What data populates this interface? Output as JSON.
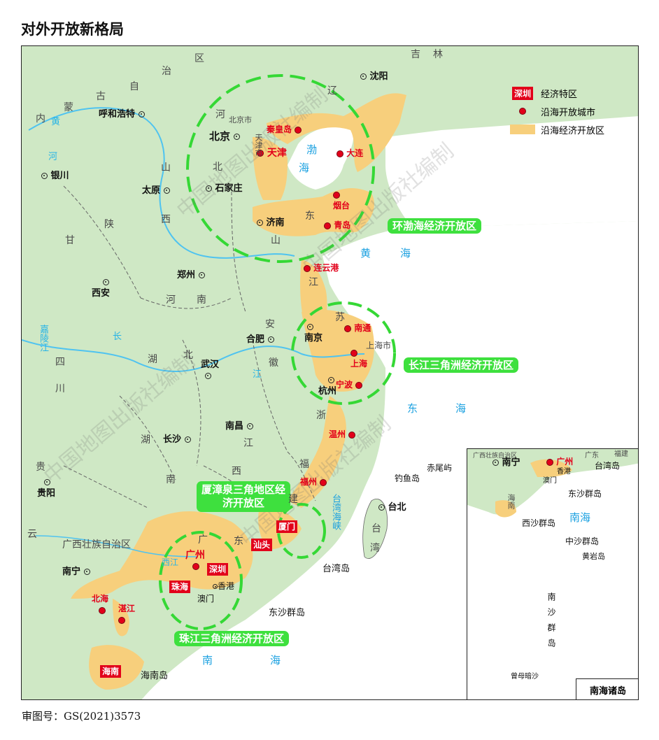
{
  "title": "对外开放新格局",
  "approval": "审图号：GS(2021)3573",
  "legend": {
    "sez_sample": "深圳",
    "sez_label": "经济特区",
    "open_city_label": "沿海开放城市",
    "zone_label": "沿海经济开放区"
  },
  "colors": {
    "land": "#cfe8c5",
    "zone_fill": "#f7cf7c",
    "sea": "#ffffff",
    "open_city": "#e2001a",
    "zone_circle": "#35d835",
    "river": "#4fc3f0"
  },
  "zones": {
    "bohai": "环渤海经济开放区",
    "yangtze": "长江三角洲经济开放区",
    "minnan": "厦漳泉三角地区经济开放区",
    "pearl": "珠江三角洲经济开放区"
  },
  "sez": [
    "深圳",
    "珠海",
    "汕头",
    "厦门",
    "海南"
  ],
  "open_cities": [
    "秦皇岛",
    "天津",
    "大连",
    "烟台",
    "青岛",
    "连云港",
    "南通",
    "上海",
    "宁波",
    "温州",
    "福州",
    "广州",
    "湛江",
    "北海"
  ],
  "cities": [
    "北京",
    "呼和浩特",
    "沈阳",
    "银川",
    "太原",
    "石家庄",
    "济南",
    "郑州",
    "西安",
    "合肥",
    "南京",
    "武汉",
    "杭州",
    "南昌",
    "长沙",
    "贵阳",
    "南宁",
    "台北",
    "香港",
    "澳门"
  ],
  "provinces": [
    "内",
    "蒙",
    "古",
    "自",
    "治",
    "区",
    "河",
    "北",
    "山",
    "西",
    "陕",
    "甘",
    "宁",
    "夏",
    "回",
    "族",
    "肃",
    "辽",
    "吉",
    "林",
    "江",
    "苏",
    "安",
    "徽",
    "浙",
    "福",
    "建",
    "湖",
    "南",
    "北",
    "四",
    "川",
    "贵",
    "州",
    "云",
    "广",
    "东",
    "广西壮族自治区",
    "台",
    "湾",
    "北京市",
    "天津市",
    "上海市"
  ],
  "seas": [
    "渤",
    "海",
    "黄",
    "海",
    "东",
    "海",
    "南",
    "海",
    "台湾海峡"
  ],
  "rivers": [
    "黄",
    "河",
    "长",
    "江",
    "西江",
    "嘉陵江"
  ],
  "islands": [
    "海南岛",
    "台湾岛",
    "钓鱼岛",
    "赤尾屿",
    "东沙群岛"
  ],
  "inset": {
    "title": "南海诸岛",
    "labels": {
      "guangxi": "广西壮族自治区",
      "guangdong": "广东",
      "fujian": "福建",
      "nanning": "南宁",
      "guangzhou": "广州",
      "hongkong": "香港",
      "macau": "澳门",
      "taiwan": "台湾岛",
      "hainan": "海南",
      "dongsha": "东沙群岛",
      "xisha": "西沙群岛",
      "zhongsha": "中沙群岛",
      "huangyan": "黄岩岛",
      "nansha": "南沙群岛",
      "zengmu": "曾母暗沙",
      "sea": "南海"
    }
  },
  "watermark": "中国地图出版社编制"
}
